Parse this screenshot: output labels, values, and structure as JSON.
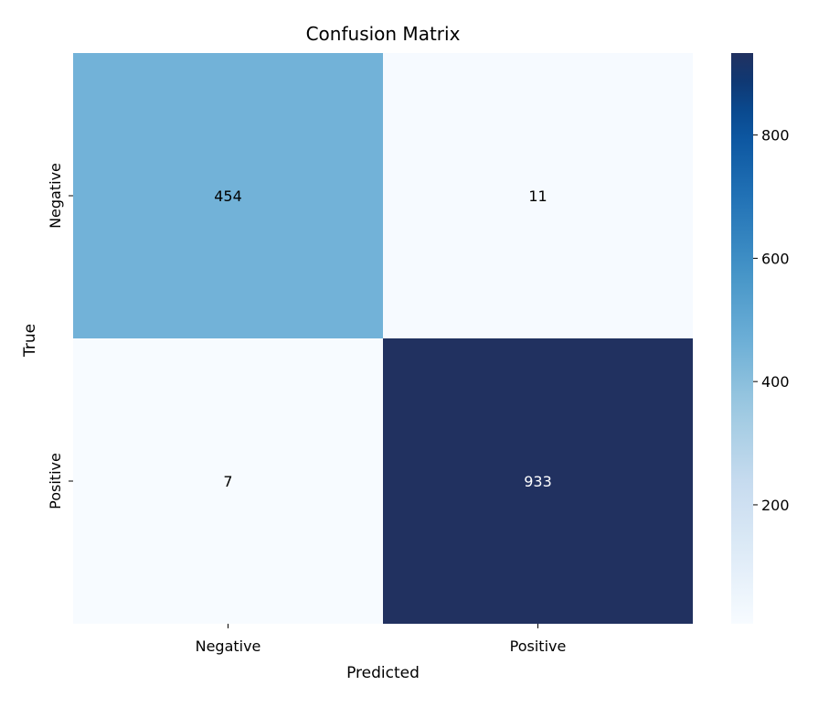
{
  "chart_data": {
    "type": "heatmap",
    "title": "Confusion Matrix",
    "xlabel": "Predicted",
    "ylabel": "True",
    "x_categories": [
      "Negative",
      "Positive"
    ],
    "y_categories": [
      "Negative",
      "Positive"
    ],
    "matrix": [
      [
        454,
        11
      ],
      [
        7,
        933
      ]
    ],
    "colormap": "Blues",
    "colorbar": {
      "ticks": [
        200,
        400,
        600,
        800
      ],
      "range": [
        7,
        933
      ]
    },
    "colors": {
      "low": "#f7fbff",
      "high": "#08306b"
    }
  }
}
